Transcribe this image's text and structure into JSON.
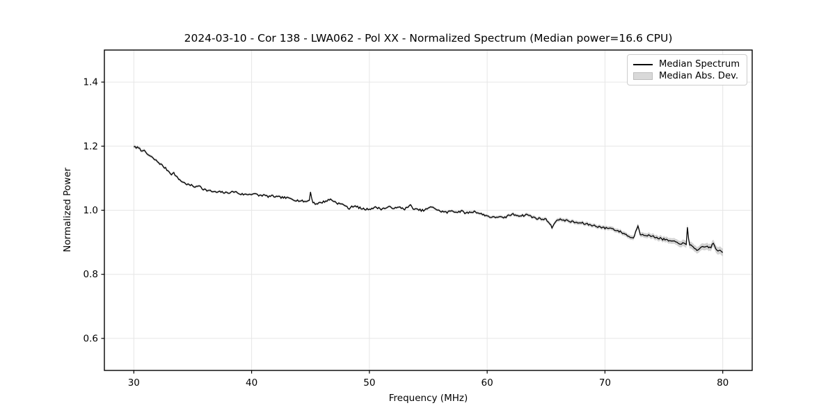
{
  "figure": {
    "title": "2024-03-10 - Cor 138 - LWA062 - Pol XX - Normalized Spectrum (Median power=16.6 CPU)",
    "xlabel": "Frequency (MHz)",
    "ylabel": "Normalized Power"
  },
  "legend": {
    "items": [
      {
        "label": "Median Spectrum",
        "sample": "line",
        "color": "#000000"
      },
      {
        "label": "Median Abs. Dev.",
        "sample": "patch",
        "color": "#d9d9d9"
      }
    ],
    "position": "upper right"
  },
  "chart_data": {
    "type": "line",
    "title": "2024-03-10 - Cor 138 - LWA062 - Pol XX - Normalized Spectrum (Median power=16.6 CPU)",
    "xlabel": "Frequency (MHz)",
    "ylabel": "Normalized Power",
    "xlim": [
      27.5,
      82.5
    ],
    "ylim": [
      0.5,
      1.5
    ],
    "xticks": [
      30,
      40,
      50,
      60,
      70,
      80
    ],
    "yticks": [
      0.6,
      0.8,
      1.0,
      1.2,
      1.4
    ],
    "grid": true,
    "legend_position": "upper right",
    "colors": {
      "line": "#000000",
      "band": "rgba(128,128,128,0.35)",
      "grid": "#e6e6e6",
      "frame": "#000000",
      "background": "#ffffff"
    },
    "series": [
      {
        "name": "Median Spectrum",
        "style": "line",
        "points": [
          [
            30.0,
            1.2
          ],
          [
            30.2,
            1.193
          ],
          [
            30.4,
            1.197
          ],
          [
            30.6,
            1.186
          ],
          [
            30.8,
            1.189
          ],
          [
            31.0,
            1.179
          ],
          [
            31.3,
            1.171
          ],
          [
            31.6,
            1.163
          ],
          [
            32.0,
            1.152
          ],
          [
            32.4,
            1.14
          ],
          [
            32.8,
            1.127
          ],
          [
            33.2,
            1.113
          ],
          [
            33.4,
            1.116
          ],
          [
            33.7,
            1.101
          ],
          [
            34.0,
            1.092
          ],
          [
            34.3,
            1.085
          ],
          [
            34.6,
            1.08
          ],
          [
            35.0,
            1.076
          ],
          [
            35.3,
            1.072
          ],
          [
            35.6,
            1.078
          ],
          [
            35.8,
            1.068
          ],
          [
            36.2,
            1.062
          ],
          [
            36.6,
            1.059
          ],
          [
            37.0,
            1.056
          ],
          [
            37.4,
            1.057
          ],
          [
            37.8,
            1.054
          ],
          [
            38.2,
            1.056
          ],
          [
            38.6,
            1.058
          ],
          [
            39.0,
            1.051
          ],
          [
            39.4,
            1.049
          ],
          [
            39.8,
            1.05
          ],
          [
            40.2,
            1.052
          ],
          [
            40.6,
            1.046
          ],
          [
            41.0,
            1.047
          ],
          [
            41.4,
            1.043
          ],
          [
            41.8,
            1.044
          ],
          [
            42.2,
            1.041
          ],
          [
            42.6,
            1.04
          ],
          [
            43.0,
            1.038
          ],
          [
            43.4,
            1.036
          ],
          [
            43.8,
            1.031
          ],
          [
            44.2,
            1.029
          ],
          [
            44.6,
            1.027
          ],
          [
            44.9,
            1.031
          ],
          [
            45.0,
            1.057
          ],
          [
            45.15,
            1.028
          ],
          [
            45.4,
            1.02
          ],
          [
            45.7,
            1.022
          ],
          [
            46.0,
            1.025
          ],
          [
            46.4,
            1.03
          ],
          [
            46.7,
            1.034
          ],
          [
            47.0,
            1.028
          ],
          [
            47.3,
            1.022
          ],
          [
            47.6,
            1.019
          ],
          [
            48.0,
            1.015
          ],
          [
            48.2,
            1.003
          ],
          [
            48.5,
            1.013
          ],
          [
            49.0,
            1.01
          ],
          [
            49.4,
            1.004
          ],
          [
            49.8,
            1.003
          ],
          [
            50.2,
            1.006
          ],
          [
            50.6,
            1.009
          ],
          [
            51.0,
            1.004
          ],
          [
            51.4,
            1.007
          ],
          [
            51.8,
            1.01
          ],
          [
            52.2,
            1.006
          ],
          [
            52.6,
            1.009
          ],
          [
            53.0,
            1.004
          ],
          [
            53.5,
            1.015
          ],
          [
            53.8,
            1.003
          ],
          [
            54.2,
            1.001
          ],
          [
            54.6,
            0.999
          ],
          [
            55.0,
            1.006
          ],
          [
            55.4,
            1.011
          ],
          [
            55.8,
            0.999
          ],
          [
            56.2,
            0.996
          ],
          [
            56.6,
            0.993
          ],
          [
            57.0,
            0.999
          ],
          [
            57.4,
            0.994
          ],
          [
            57.8,
            0.997
          ],
          [
            58.2,
            0.991
          ],
          [
            58.6,
            0.994
          ],
          [
            59.0,
            0.996
          ],
          [
            59.4,
            0.989
          ],
          [
            59.8,
            0.985
          ],
          [
            60.2,
            0.98
          ],
          [
            60.6,
            0.977
          ],
          [
            61.0,
            0.981
          ],
          [
            61.4,
            0.974
          ],
          [
            61.8,
            0.984
          ],
          [
            62.2,
            0.987
          ],
          [
            62.6,
            0.984
          ],
          [
            63.0,
            0.983
          ],
          [
            63.4,
            0.987
          ],
          [
            63.8,
            0.979
          ],
          [
            64.2,
            0.975
          ],
          [
            64.6,
            0.973
          ],
          [
            65.0,
            0.971
          ],
          [
            65.2,
            0.965
          ],
          [
            65.5,
            0.946
          ],
          [
            65.8,
            0.966
          ],
          [
            66.0,
            0.969
          ],
          [
            66.4,
            0.971
          ],
          [
            66.8,
            0.967
          ],
          [
            67.2,
            0.964
          ],
          [
            67.6,
            0.961
          ],
          [
            68.0,
            0.96
          ],
          [
            68.4,
            0.957
          ],
          [
            68.8,
            0.954
          ],
          [
            69.2,
            0.951
          ],
          [
            69.6,
            0.948
          ],
          [
            70.0,
            0.944
          ],
          [
            70.4,
            0.945
          ],
          [
            70.8,
            0.94
          ],
          [
            71.2,
            0.934
          ],
          [
            71.6,
            0.928
          ],
          [
            72.0,
            0.919
          ],
          [
            72.4,
            0.912
          ],
          [
            72.8,
            0.951
          ],
          [
            73.0,
            0.926
          ],
          [
            73.4,
            0.924
          ],
          [
            73.8,
            0.92
          ],
          [
            74.2,
            0.917
          ],
          [
            74.6,
            0.913
          ],
          [
            75.0,
            0.909
          ],
          [
            75.4,
            0.905
          ],
          [
            75.8,
            0.902
          ],
          [
            76.2,
            0.898
          ],
          [
            76.6,
            0.896
          ],
          [
            76.9,
            0.893
          ],
          [
            77.0,
            0.947
          ],
          [
            77.15,
            0.892
          ],
          [
            77.5,
            0.886
          ],
          [
            77.9,
            0.874
          ],
          [
            78.2,
            0.883
          ],
          [
            78.6,
            0.887
          ],
          [
            79.0,
            0.884
          ],
          [
            79.2,
            0.899
          ],
          [
            79.4,
            0.878
          ],
          [
            79.7,
            0.874
          ],
          [
            80.0,
            0.867
          ]
        ]
      },
      {
        "name": "Median Abs. Dev.",
        "style": "band_halfwidth",
        "points": [
          [
            30,
            0.005
          ],
          [
            35,
            0.004
          ],
          [
            40,
            0.0035
          ],
          [
            45,
            0.004
          ],
          [
            50,
            0.0035
          ],
          [
            55,
            0.004
          ],
          [
            60,
            0.0045
          ],
          [
            63,
            0.005
          ],
          [
            66,
            0.006
          ],
          [
            69,
            0.006
          ],
          [
            72,
            0.007
          ],
          [
            74,
            0.008
          ],
          [
            76,
            0.009
          ],
          [
            77,
            0.011
          ],
          [
            78,
            0.01
          ],
          [
            79,
            0.011
          ],
          [
            80,
            0.012
          ]
        ]
      }
    ],
    "render": {
      "noise_amplitude": 0.0032,
      "noise_seed": 7,
      "sample_step_mhz": 0.1
    }
  }
}
